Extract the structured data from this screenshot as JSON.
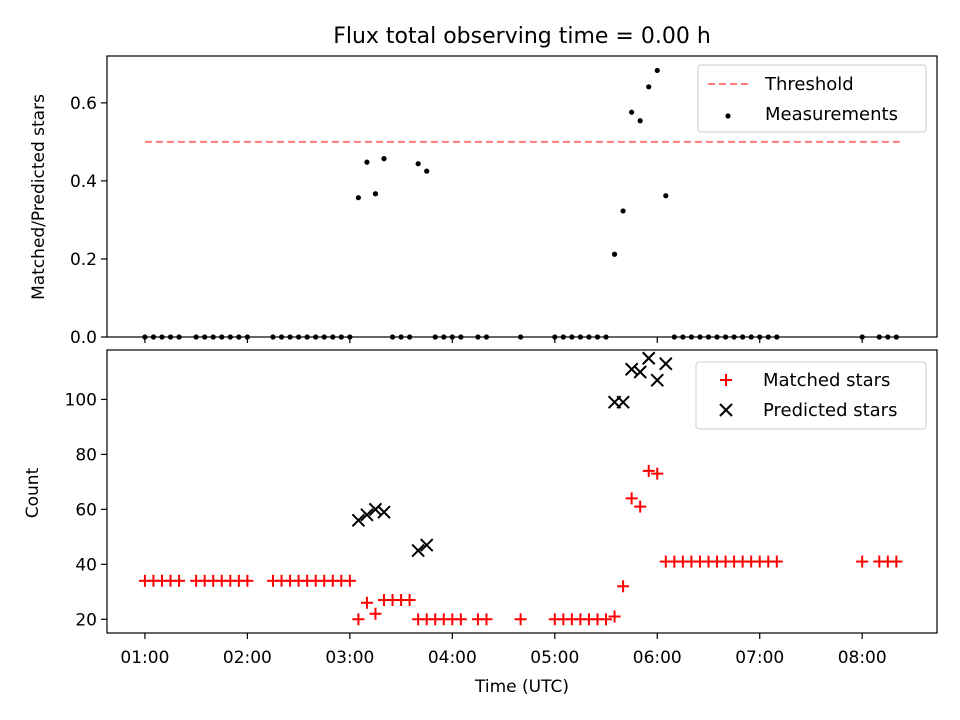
{
  "title": "Flux total observing time = 0.00 h",
  "xlabel": "Time (UTC)",
  "x_ticks": [
    "01:00",
    "02:00",
    "03:00",
    "04:00",
    "05:00",
    "06:00",
    "07:00",
    "08:00"
  ],
  "chart_data": [
    {
      "type": "scatter",
      "ylabel": "Matched/Predicted stars",
      "xlim_hours": [
        0.63,
        8.73
      ],
      "ylim": [
        0,
        0.72
      ],
      "yticks": [
        0.0,
        0.2,
        0.4,
        0.6
      ],
      "ytick_labels": [
        "0.0",
        "0.2",
        "0.4",
        "0.6"
      ],
      "legend_position": "top-right",
      "threshold": {
        "name": "Threshold",
        "value": 0.5,
        "x_range": [
          "01:00",
          "08:22"
        ],
        "color": "#ff7a7a",
        "style": "dashed"
      },
      "series": [
        {
          "name": "Measurements",
          "color": "#000000",
          "marker": "dot",
          "x": [
            "01:00",
            "01:05",
            "01:10",
            "01:15",
            "01:20",
            "01:30",
            "01:35",
            "01:40",
            "01:45",
            "01:50",
            "01:55",
            "02:00",
            "02:15",
            "02:20",
            "02:25",
            "02:30",
            "02:35",
            "02:40",
            "02:45",
            "02:50",
            "02:55",
            "03:00",
            "03:05",
            "03:10",
            "03:15",
            "03:20",
            "03:25",
            "03:30",
            "03:35",
            "03:40",
            "03:45",
            "03:50",
            "03:55",
            "04:00",
            "04:05",
            "04:15",
            "04:20",
            "04:40",
            "05:00",
            "05:05",
            "05:10",
            "05:15",
            "05:20",
            "05:25",
            "05:30",
            "05:35",
            "05:40",
            "05:45",
            "05:50",
            "05:55",
            "06:00",
            "06:05",
            "06:10",
            "06:15",
            "06:20",
            "06:25",
            "06:30",
            "06:35",
            "06:40",
            "06:45",
            "06:50",
            "06:55",
            "07:00",
            "07:05",
            "07:10",
            "08:00",
            "08:10",
            "08:15",
            "08:20"
          ],
          "y": [
            0,
            0,
            0,
            0,
            0,
            0,
            0,
            0,
            0,
            0,
            0,
            0,
            0,
            0,
            0,
            0,
            0,
            0,
            0,
            0,
            0,
            0,
            0.357,
            0.448,
            0.367,
            0.457,
            0,
            0,
            0,
            0.444,
            0.425,
            0,
            0,
            0,
            0,
            0,
            0,
            0,
            0,
            0,
            0,
            0,
            0,
            0,
            0,
            0.212,
            0.323,
            0.576,
            0.554,
            0.641,
            0.683,
            0.362,
            0,
            0,
            0,
            0,
            0,
            0,
            0,
            0,
            0,
            0,
            0,
            0,
            0,
            0,
            0,
            0,
            0
          ]
        }
      ]
    },
    {
      "type": "scatter",
      "ylabel": "Count",
      "xlim_hours": [
        0.63,
        8.73
      ],
      "ylim": [
        15,
        118
      ],
      "yticks": [
        20,
        40,
        60,
        80,
        100
      ],
      "ytick_labels": [
        "20",
        "40",
        "60",
        "80",
        "100"
      ],
      "legend_position": "top-right",
      "series": [
        {
          "name": "Matched stars",
          "color": "#ff0000",
          "marker": "plus",
          "x": [
            "01:00",
            "01:05",
            "01:10",
            "01:15",
            "01:20",
            "01:30",
            "01:35",
            "01:40",
            "01:45",
            "01:50",
            "01:55",
            "02:00",
            "02:15",
            "02:20",
            "02:25",
            "02:30",
            "02:35",
            "02:40",
            "02:45",
            "02:50",
            "02:55",
            "03:00",
            "03:05",
            "03:10",
            "03:15",
            "03:20",
            "03:25",
            "03:30",
            "03:35",
            "03:40",
            "03:45",
            "03:50",
            "03:55",
            "04:00",
            "04:05",
            "04:15",
            "04:20",
            "04:40",
            "05:00",
            "05:05",
            "05:10",
            "05:15",
            "05:20",
            "05:25",
            "05:30",
            "05:35",
            "05:40",
            "05:45",
            "05:50",
            "05:55",
            "06:00",
            "06:05",
            "06:10",
            "06:15",
            "06:20",
            "06:25",
            "06:30",
            "06:35",
            "06:40",
            "06:45",
            "06:50",
            "06:55",
            "07:00",
            "07:05",
            "07:10",
            "08:00",
            "08:10",
            "08:15",
            "08:20"
          ],
          "y": [
            34,
            34,
            34,
            34,
            34,
            34,
            34,
            34,
            34,
            34,
            34,
            34,
            34,
            34,
            34,
            34,
            34,
            34,
            34,
            34,
            34,
            34,
            20,
            26,
            22,
            27,
            27,
            27,
            27,
            20,
            20,
            20,
            20,
            20,
            20,
            20,
            20,
            20,
            20,
            20,
            20,
            20,
            20,
            20,
            20,
            21,
            32,
            64,
            61,
            74,
            73,
            41,
            41,
            41,
            41,
            41,
            41,
            41,
            41,
            41,
            41,
            41,
            41,
            41,
            41,
            41,
            41,
            41,
            41
          ]
        },
        {
          "name": "Predicted stars",
          "color": "#000000",
          "marker": "x",
          "x": [
            "03:05",
            "03:10",
            "03:15",
            "03:20",
            "03:40",
            "03:45",
            "05:35",
            "05:40",
            "05:45",
            "05:50",
            "05:55",
            "06:00",
            "06:05"
          ],
          "y": [
            56,
            58,
            60,
            59,
            45,
            47,
            99,
            99,
            111,
            110,
            115,
            107,
            113
          ]
        }
      ]
    }
  ]
}
